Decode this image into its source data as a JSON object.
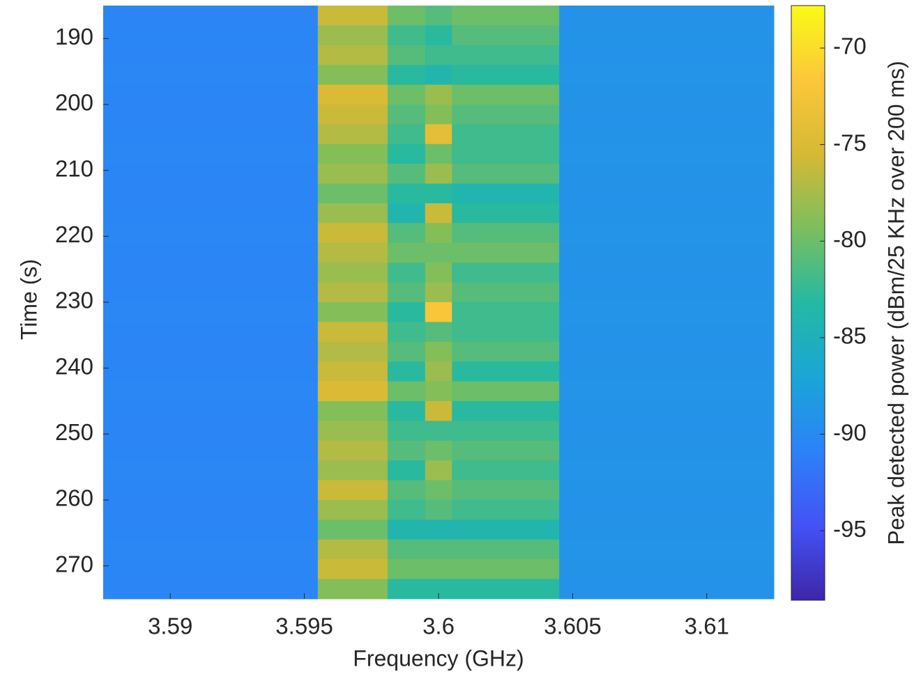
{
  "chart_data": {
    "type": "heatmap",
    "xlabel": "Frequency (GHz)",
    "ylabel": "Time (s)",
    "colorbar_label": "Peak detected power (dBm/25 KHz over 200 ms)",
    "x": [
      3.5875,
      3.5955,
      3.5981,
      3.5995,
      3.6005,
      3.6045,
      3.6125
    ],
    "y": [
      185,
      188,
      191,
      194,
      197,
      200,
      203,
      206,
      209,
      212,
      215,
      218,
      221,
      224,
      227,
      230,
      233,
      236,
      239,
      242,
      245,
      248,
      251,
      254,
      257,
      260,
      263,
      266,
      269,
      272,
      275
    ],
    "values": [
      [
        -90.6,
        -76,
        -80,
        -81,
        -80,
        -89.2
      ],
      [
        -90.5,
        -78,
        -82,
        -83,
        -81,
        -89.1
      ],
      [
        -90.6,
        -77,
        -81,
        -82,
        -82,
        -89.2
      ],
      [
        -90.4,
        -79,
        -83,
        -84,
        -83,
        -89.0
      ],
      [
        -90.5,
        -75,
        -80,
        -78,
        -80,
        -89.1
      ],
      [
        -90.6,
        -76,
        -81,
        -79,
        -81,
        -89.2
      ],
      [
        -90.5,
        -77,
        -82,
        -74,
        -82,
        -89.1
      ],
      [
        -90.4,
        -79,
        -83,
        -80,
        -82,
        -89.0
      ],
      [
        -90.5,
        -78,
        -81,
        -78,
        -81,
        -89.1
      ],
      [
        -90.6,
        -80,
        -83,
        -83,
        -84,
        -89.2
      ],
      [
        -90.5,
        -78,
        -84,
        -76,
        -83,
        -89.1
      ],
      [
        -90.4,
        -76,
        -81,
        -79,
        -81,
        -89.0
      ],
      [
        -90.5,
        -77,
        -80,
        -80,
        -80,
        -89.1
      ],
      [
        -90.6,
        -78,
        -82,
        -79,
        -82,
        -89.2
      ],
      [
        -90.5,
        -77,
        -81,
        -78,
        -81,
        -89.1
      ],
      [
        -90.4,
        -79,
        -83,
        -72,
        -82,
        -89.0
      ],
      [
        -90.5,
        -76,
        -82,
        -81,
        -82,
        -89.1
      ],
      [
        -90.6,
        -77,
        -81,
        -79,
        -81,
        -89.2
      ],
      [
        -90.5,
        -76,
        -83,
        -78,
        -83,
        -89.1
      ],
      [
        -90.4,
        -75,
        -80,
        -79,
        -80,
        -89.0
      ],
      [
        -90.5,
        -79,
        -83,
        -76,
        -83,
        -89.1
      ],
      [
        -90.6,
        -78,
        -82,
        -82,
        -82,
        -89.2
      ],
      [
        -90.5,
        -77,
        -81,
        -80,
        -81,
        -89.1
      ],
      [
        -90.4,
        -78,
        -83,
        -78,
        -82,
        -89.0
      ],
      [
        -90.5,
        -76,
        -81,
        -80,
        -81,
        -89.1
      ],
      [
        -90.6,
        -78,
        -82,
        -81,
        -82,
        -89.2
      ],
      [
        -90.5,
        -80,
        -84,
        -84,
        -84,
        -89.1
      ],
      [
        -90.4,
        -77,
        -81,
        -81,
        -81,
        -89.0
      ],
      [
        -90.5,
        -76,
        -80,
        -80,
        -80,
        -89.1
      ],
      [
        -90.6,
        -79,
        -83,
        -83,
        -83,
        -89.2
      ]
    ],
    "xlim": [
      3.5875,
      3.6125
    ],
    "xticks": [
      3.59,
      3.595,
      3.6,
      3.605,
      3.61
    ],
    "ylim": [
      185,
      275
    ],
    "yticks": [
      190,
      200,
      210,
      220,
      230,
      240,
      250,
      260,
      270
    ],
    "clim": [
      -98.6,
      -67.8
    ],
    "cticks": [
      -95,
      -90,
      -85,
      -80,
      -75,
      -70
    ],
    "colormap": [
      "#3e26a8",
      "#4352f6",
      "#2c82f8",
      "#19a6d6",
      "#24b9a3",
      "#7bbf5d",
      "#d6b935",
      "#fcc73a",
      "#f9fb15"
    ]
  }
}
